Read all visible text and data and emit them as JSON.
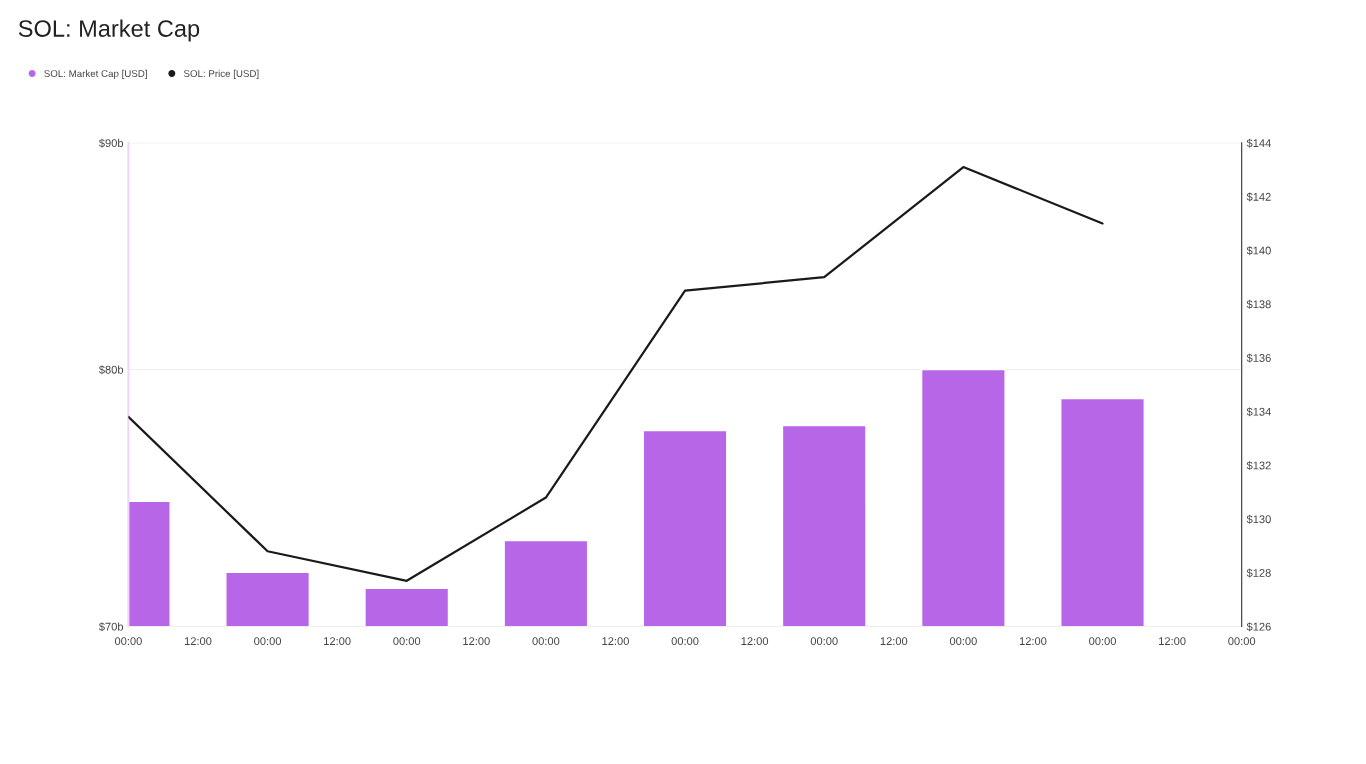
{
  "chart_data": {
    "type": "bar",
    "title": "SOL: Market Cap",
    "categories": [
      "00:00",
      "12:00",
      "00:00",
      "12:00",
      "00:00",
      "12:00",
      "00:00",
      "12:00",
      "00:00",
      "12:00",
      "00:00",
      "12:00",
      "00:00",
      "12:00",
      "00:00",
      "12:00",
      "00:00"
    ],
    "series": [
      {
        "name": "SOL: Market Cap [USD]",
        "color": "#b866e8",
        "values": [
          74.7,
          null,
          72.0,
          null,
          71.4,
          null,
          73.2,
          null,
          77.5,
          null,
          77.7,
          null,
          80.0,
          null,
          78.8,
          null,
          null
        ]
      },
      {
        "name": "SOL: Price [USD]",
        "type": "line",
        "axis": "y2",
        "color": "#1a1a1a",
        "values": [
          133.8,
          null,
          128.8,
          null,
          127.7,
          null,
          130.8,
          null,
          138.5,
          null,
          139.0,
          null,
          143.1,
          null,
          141.0,
          null,
          null
        ]
      }
    ],
    "log": "y",
    "ylim": [
      70,
      90
    ],
    "yticks": [
      {
        "value": 70,
        "label": "$70b"
      },
      {
        "value": 80,
        "label": "$80b"
      },
      {
        "value": 90,
        "label": "$90b"
      }
    ],
    "y2lim": [
      126,
      144
    ],
    "y2ticks": [
      {
        "value": 126,
        "label": "$126"
      },
      {
        "value": 128,
        "label": "$128"
      },
      {
        "value": 130,
        "label": "$130"
      },
      {
        "value": 132,
        "label": "$132"
      },
      {
        "value": 134,
        "label": "$134"
      },
      {
        "value": 136,
        "label": "$136"
      },
      {
        "value": 138,
        "label": "$138"
      },
      {
        "value": 140,
        "label": "$140"
      },
      {
        "value": 142,
        "label": "$142"
      },
      {
        "value": 144,
        "label": "$144"
      }
    ],
    "grid": "y",
    "legend": "top left"
  }
}
